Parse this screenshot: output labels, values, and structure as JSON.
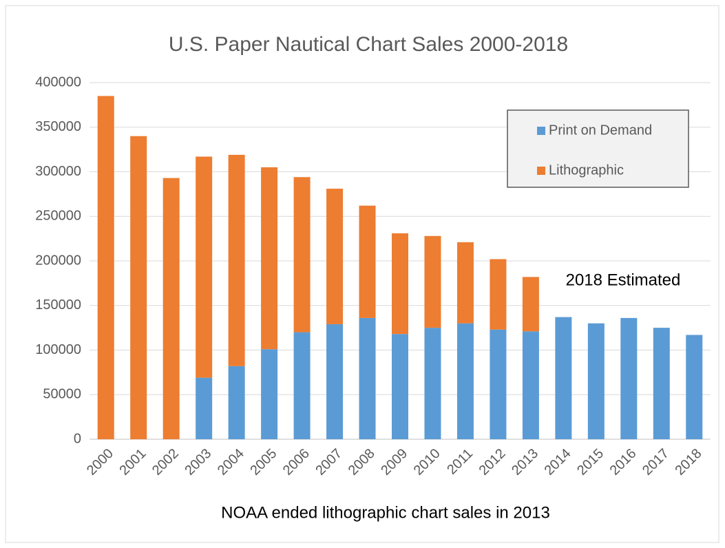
{
  "chart_data": {
    "type": "stacked_bar",
    "title": "U.S. Paper Nautical Chart Sales 2000-2018",
    "xlabel": "NOAA ended lithographic chart sales in 2013",
    "annotation": "2018 Estimated",
    "categories": [
      "2000",
      "2001",
      "2002",
      "2003",
      "2004",
      "2005",
      "2006",
      "2007",
      "2008",
      "2009",
      "2010",
      "2011",
      "2012",
      "2013",
      "2014",
      "2015",
      "2016",
      "2017",
      "2018"
    ],
    "series": [
      {
        "name": "Print on Demand",
        "color": "#5b9bd5",
        "values": [
          0,
          0,
          0,
          69000,
          82000,
          101000,
          120000,
          129000,
          136000,
          118000,
          125000,
          130000,
          123000,
          121000,
          137000,
          130000,
          136000,
          125000,
          117000
        ]
      },
      {
        "name": "Lithographic",
        "color": "#ed7d31",
        "values": [
          385000,
          340000,
          293000,
          248000,
          237000,
          204000,
          174000,
          152000,
          126000,
          113000,
          103000,
          91000,
          79000,
          61000,
          0,
          0,
          0,
          0,
          0
        ]
      }
    ],
    "ylim": [
      0,
      400000
    ],
    "yticks": [
      0,
      50000,
      100000,
      150000,
      200000,
      250000,
      300000,
      350000,
      400000
    ],
    "grid": true
  }
}
